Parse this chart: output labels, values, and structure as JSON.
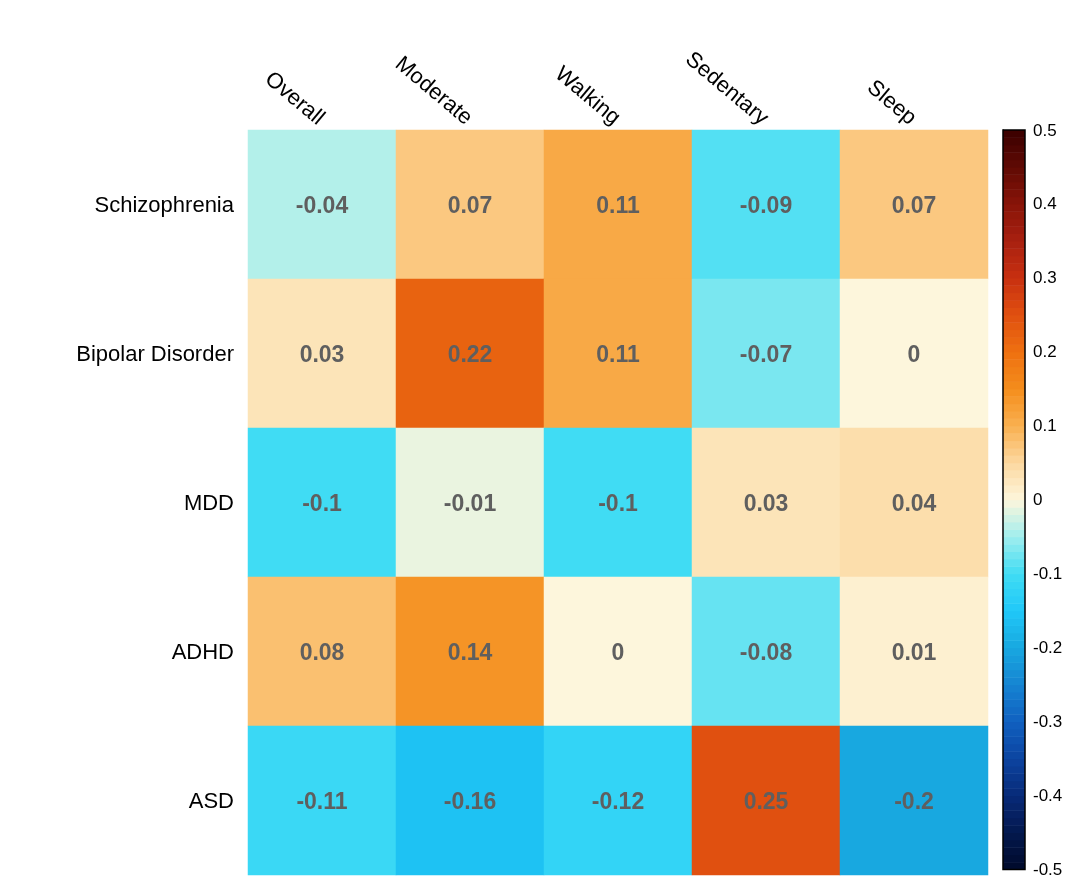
{
  "chart_data": {
    "type": "heatmap",
    "categories": [
      "Overall",
      "Moderate",
      "Walking",
      "Sedentary",
      "Sleep"
    ],
    "y_categories": [
      "Schizophrenia",
      "Bipolar Disorder",
      "MDD",
      "ADHD",
      "ASD"
    ],
    "cells": [
      [
        -0.04,
        0.07,
        0.11,
        -0.09,
        0.07
      ],
      [
        0.03,
        0.22,
        0.11,
        -0.07,
        0
      ],
      [
        -0.1,
        -0.01,
        -0.1,
        0.03,
        0.04
      ],
      [
        0.08,
        0.14,
        0,
        -0.08,
        0.01
      ],
      [
        -0.11,
        -0.16,
        -0.12,
        0.25,
        -0.2
      ]
    ],
    "data_labels": true,
    "clim": [
      -0.5,
      0.5
    ],
    "cticks": [
      -0.5,
      -0.4,
      -0.3,
      -0.2,
      -0.1,
      0,
      0.1,
      0.2,
      0.3,
      0.4,
      0.5
    ]
  }
}
